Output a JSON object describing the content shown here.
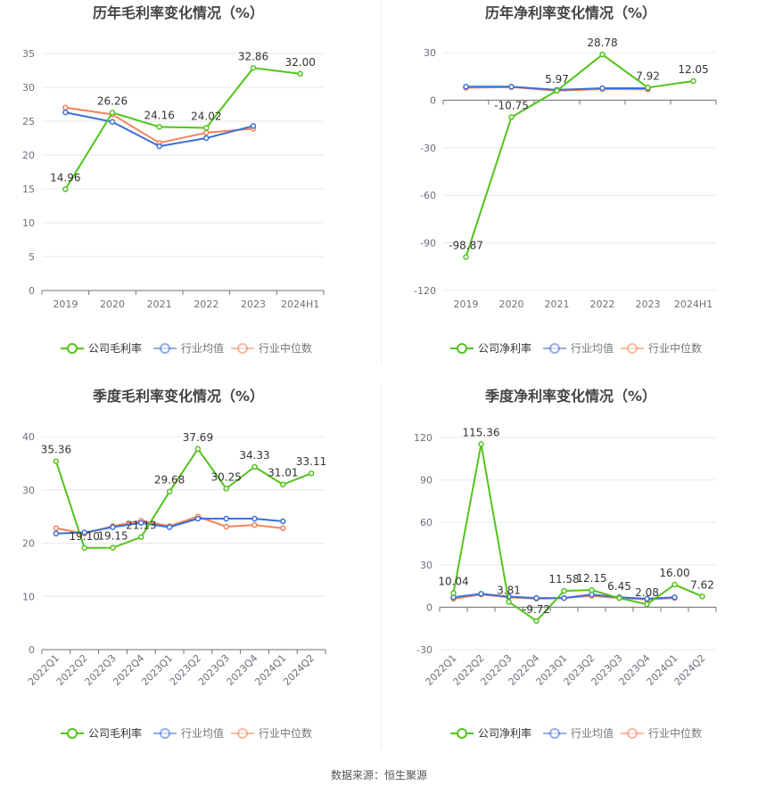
{
  "source_label": "数据来源：恒生聚源",
  "colors": {
    "company": "#52c41a",
    "industry_avg": "#3c6fd8",
    "industry_median": "#f4825a",
    "axis": "#6e7079",
    "grid": "#e6e9f0",
    "title": "#444444",
    "label": "#333333"
  },
  "chart_data": [
    {
      "type": "line",
      "title": "历年毛利率变化情况（%）",
      "categories": [
        "2019",
        "2020",
        "2021",
        "2022",
        "2023",
        "2024H1"
      ],
      "ylim": [
        0,
        35
      ],
      "yticks": [
        0,
        5,
        10,
        15,
        20,
        25,
        30,
        35
      ],
      "rotate_x": false,
      "series": [
        {
          "name": "公司毛利率",
          "key": "company",
          "values": [
            14.96,
            26.26,
            24.16,
            24.02,
            32.86,
            32.0
          ],
          "labels": [
            "14.96",
            "26.26",
            "24.16",
            "24.02",
            "32.86",
            "32.00"
          ]
        },
        {
          "name": "行业均值",
          "key": "industry_avg",
          "values": [
            26.3,
            24.9,
            21.3,
            22.5,
            24.3,
            null
          ]
        },
        {
          "name": "行业中位数",
          "key": "industry_median",
          "values": [
            27.0,
            26.0,
            21.8,
            23.3,
            23.9,
            null
          ]
        }
      ]
    },
    {
      "type": "line",
      "title": "历年净利率变化情况（%）",
      "categories": [
        "2019",
        "2020",
        "2021",
        "2022",
        "2023",
        "2024H1"
      ],
      "ylim": [
        -120,
        30
      ],
      "yticks": [
        -120,
        -90,
        -60,
        -30,
        0,
        30
      ],
      "rotate_x": false,
      "series": [
        {
          "name": "公司净利率",
          "key": "company",
          "values": [
            -98.87,
            -10.75,
            5.97,
            28.78,
            7.92,
            12.05
          ],
          "labels": [
            "-98.87",
            "-10.75",
            "5.97",
            "28.78",
            "7.92",
            "12.05"
          ]
        },
        {
          "name": "行业均值",
          "key": "industry_avg",
          "values": [
            8.5,
            8.5,
            6.5,
            7.5,
            7.5,
            null
          ]
        },
        {
          "name": "行业中位数",
          "key": "industry_median",
          "values": [
            7.8,
            8.2,
            6.0,
            7.0,
            6.8,
            null
          ]
        }
      ]
    },
    {
      "type": "line",
      "title": "季度毛利率变化情况（%）",
      "categories": [
        "2022Q1",
        "2022Q2",
        "2022Q3",
        "2022Q4",
        "2023Q1",
        "2023Q2",
        "2023Q3",
        "2023Q4",
        "2024Q1",
        "2024Q2"
      ],
      "ylim": [
        0,
        40
      ],
      "yticks": [
        0,
        10,
        20,
        30,
        40
      ],
      "rotate_x": true,
      "series": [
        {
          "name": "公司毛利率",
          "key": "company",
          "values": [
            35.36,
            19.1,
            19.15,
            21.13,
            29.68,
            37.69,
            30.25,
            34.33,
            31.01,
            33.11
          ],
          "labels": [
            "35.36",
            "19.10",
            "19.15",
            "21.13",
            "29.68",
            "37.69",
            "30.25",
            "34.33",
            "31.01",
            "33.11"
          ]
        },
        {
          "name": "行业均值",
          "key": "industry_avg",
          "values": [
            21.8,
            22.0,
            23.0,
            23.8,
            23.0,
            24.6,
            24.6,
            24.6,
            24.1,
            null
          ]
        },
        {
          "name": "行业中位数",
          "key": "industry_median",
          "values": [
            22.8,
            21.8,
            23.2,
            24.2,
            23.2,
            25.0,
            23.1,
            23.4,
            22.8,
            null
          ]
        }
      ]
    },
    {
      "type": "line",
      "title": "季度净利率变化情况（%）",
      "categories": [
        "2022Q1",
        "2022Q2",
        "2022Q3",
        "2022Q4",
        "2023Q1",
        "2023Q2",
        "2023Q3",
        "2023Q4",
        "2024Q1",
        "2024Q2"
      ],
      "ylim": [
        -30,
        120
      ],
      "yticks": [
        -30,
        0,
        30,
        60,
        90,
        120
      ],
      "rotate_x": true,
      "series": [
        {
          "name": "公司净利率",
          "key": "company",
          "values": [
            10.04,
            115.36,
            3.81,
            -9.72,
            11.58,
            12.15,
            6.45,
            2.08,
            16.0,
            7.62
          ],
          "labels": [
            "10.04",
            "115.36",
            "3.81",
            "-9.72",
            "11.58",
            "12.15",
            "6.45",
            "2.08",
            "16.00",
            "7.62"
          ]
        },
        {
          "name": "行业均值",
          "key": "industry_avg",
          "values": [
            7.0,
            9.5,
            7.5,
            6.5,
            6.5,
            9.0,
            7.0,
            6.0,
            7.0,
            null
          ]
        },
        {
          "name": "行业中位数",
          "key": "industry_median",
          "values": [
            6.0,
            9.0,
            7.0,
            6.0,
            6.5,
            8.0,
            6.5,
            5.5,
            6.5,
            null
          ]
        }
      ]
    }
  ]
}
